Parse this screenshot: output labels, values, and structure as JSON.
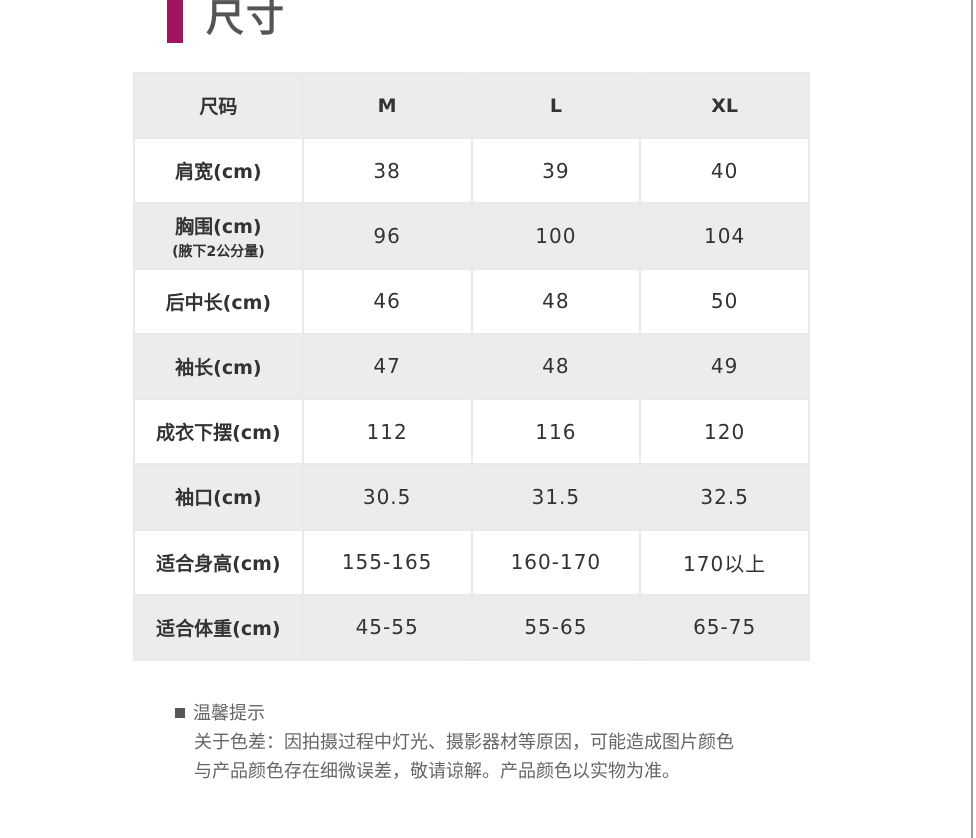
{
  "title": "尺寸",
  "colors": {
    "accent": "#a0155f",
    "row_alt": "#ececee"
  },
  "table": {
    "headers": [
      "尺码",
      "M",
      "L",
      "XL"
    ],
    "rows": [
      {
        "label": "肩宽(cm)",
        "sub": "",
        "values": [
          "38",
          "39",
          "40"
        ]
      },
      {
        "label": "胸围(cm)",
        "sub": "(腋下2公分量)",
        "values": [
          "96",
          "100",
          "104"
        ]
      },
      {
        "label": "后中长(cm)",
        "sub": "",
        "values": [
          "46",
          "48",
          "50"
        ]
      },
      {
        "label": "袖长(cm)",
        "sub": "",
        "values": [
          "47",
          "48",
          "49"
        ]
      },
      {
        "label": "成衣下摆(cm)",
        "sub": "",
        "values": [
          "112",
          "116",
          "120"
        ]
      },
      {
        "label": "袖口(cm)",
        "sub": "",
        "values": [
          "30.5",
          "31.5",
          "32.5"
        ]
      },
      {
        "label": "适合身高(cm)",
        "sub": "",
        "values": [
          "155-165",
          "160-170",
          "170以上"
        ]
      },
      {
        "label": "适合体重(cm)",
        "sub": "",
        "values": [
          "45-55",
          "55-65",
          "65-75"
        ]
      }
    ]
  },
  "tips": {
    "heading": "温馨提示",
    "line1": "关于色差：因拍摄过程中灯光、摄影器材等原因，可能造成图片颜色",
    "line2": "与产品颜色存在细微误差，敬请谅解。产品颜色以实物为准。"
  }
}
